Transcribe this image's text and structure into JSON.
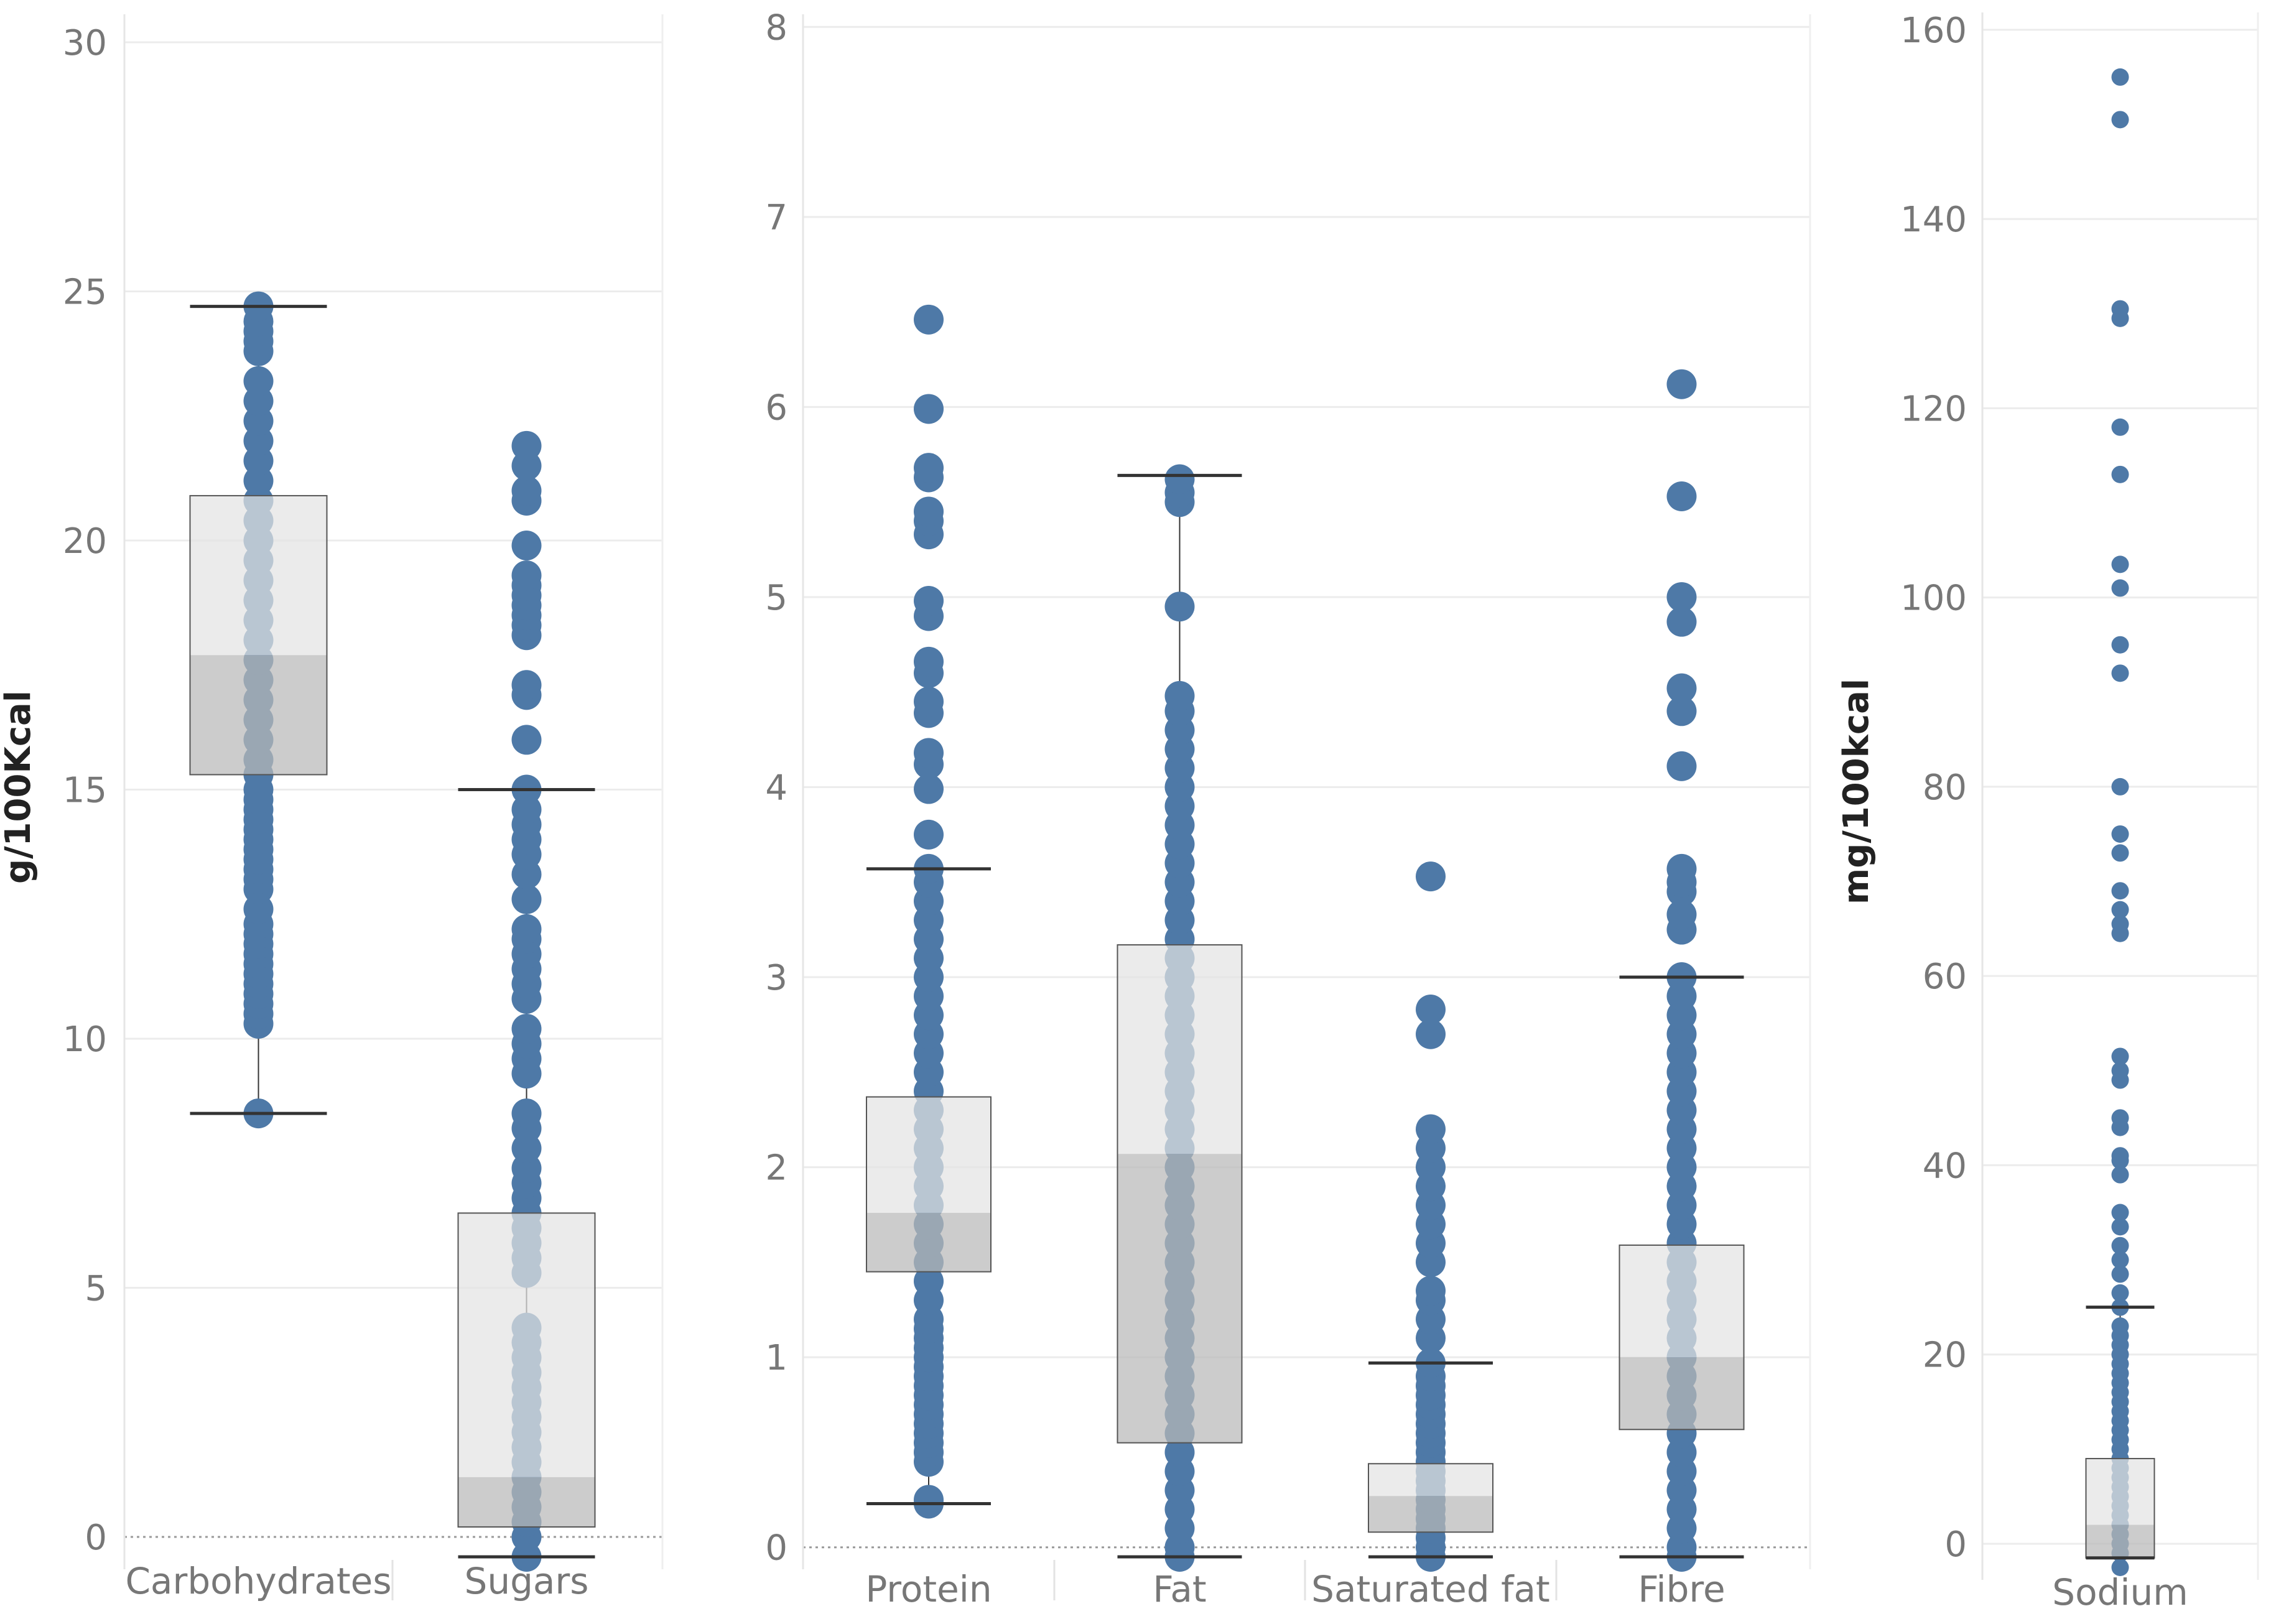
{
  "chart_data": [
    {
      "type": "box",
      "ylabel": "g/100Kcal",
      "ylim": [
        -0.4,
        30.5
      ],
      "yticks": [
        0,
        5,
        10,
        15,
        20,
        25,
        30
      ],
      "ytick_labels": [
        "0",
        "5",
        "10",
        "15",
        "20",
        "25",
        "30"
      ],
      "grid": true,
      "zero_line": "dotted",
      "categories": [
        "Carbohydrates",
        "Sugars"
      ],
      "boxes": [
        {
          "name": "Carbohydrates",
          "whisker_low": 8.5,
          "q1": 15.3,
          "median": 17.7,
          "q3": 20.9,
          "whisker_high": 24.7,
          "points": [
            8.5,
            10.3,
            10.5,
            10.7,
            10.9,
            11.1,
            11.3,
            11.5,
            11.7,
            11.9,
            12.1,
            12.3,
            12.6,
            13.0,
            13.2,
            13.4,
            13.6,
            13.8,
            14.0,
            14.2,
            14.4,
            14.6,
            14.8,
            15.0,
            15.3,
            15.6,
            16.0,
            16.4,
            16.8,
            17.2,
            17.6,
            18.0,
            18.4,
            18.8,
            19.2,
            19.6,
            20.0,
            20.4,
            20.8,
            21.2,
            21.6,
            22.0,
            22.4,
            22.8,
            23.2,
            23.8,
            24.0,
            24.2,
            24.4,
            24.7
          ]
        },
        {
          "name": "Sugars",
          "whisker_low": -0.4,
          "q1": 0.2,
          "median": 1.2,
          "q3": 6.5,
          "whisker_high": 15.0,
          "points": [
            -0.4,
            0.0,
            0.3,
            0.6,
            0.9,
            1.2,
            1.5,
            1.8,
            2.1,
            2.4,
            2.7,
            3.0,
            3.3,
            3.6,
            3.9,
            4.2,
            5.3,
            5.6,
            5.9,
            6.2,
            6.5,
            6.8,
            7.1,
            7.4,
            7.8,
            8.2,
            8.5,
            9.3,
            9.6,
            9.9,
            10.2,
            10.8,
            11.1,
            11.4,
            11.7,
            12.0,
            12.2,
            12.8,
            13.3,
            13.7,
            14.0,
            14.3,
            14.6,
            15.0,
            16.0,
            16.9,
            17.1,
            18.1,
            18.3,
            18.5,
            18.7,
            18.9,
            19.1,
            19.3,
            19.9,
            20.8,
            21.0,
            21.5,
            21.9
          ]
        }
      ]
    },
    {
      "type": "box",
      "ylabel": "",
      "ylim": [
        -0.05,
        8.05
      ],
      "yticks": [
        0,
        1,
        2,
        3,
        4,
        5,
        6,
        7,
        8
      ],
      "ytick_labels": [
        "0",
        "1",
        "2",
        "3",
        "4",
        "5",
        "6",
        "7",
        "8"
      ],
      "grid": true,
      "zero_line": "dotted",
      "categories": [
        "Protein",
        "Fat",
        "Saturated fat",
        "Fibre"
      ],
      "boxes": [
        {
          "name": "Protein",
          "whisker_low": 0.23,
          "q1": 1.45,
          "median": 1.76,
          "q3": 2.37,
          "whisker_high": 3.57,
          "points": [
            0.23,
            0.25,
            0.45,
            0.5,
            0.55,
            0.6,
            0.65,
            0.7,
            0.75,
            0.8,
            0.85,
            0.9,
            0.95,
            1.0,
            1.05,
            1.1,
            1.15,
            1.2,
            1.3,
            1.4,
            1.5,
            1.6,
            1.7,
            1.8,
            1.9,
            2.0,
            2.1,
            2.2,
            2.3,
            2.4,
            2.5,
            2.6,
            2.7,
            2.8,
            2.9,
            3.0,
            3.1,
            3.2,
            3.3,
            3.4,
            3.5,
            3.57,
            3.75,
            3.99,
            4.12,
            4.18,
            4.39,
            4.45,
            4.6,
            4.66,
            4.9,
            4.98,
            5.33,
            5.4,
            5.45,
            5.63,
            5.68,
            5.99,
            6.46
          ]
        },
        {
          "name": "Fat",
          "whisker_low": -0.05,
          "q1": 0.55,
          "median": 2.07,
          "q3": 3.17,
          "whisker_high": 5.64,
          "points": [
            -0.05,
            0.0,
            0.1,
            0.2,
            0.3,
            0.4,
            0.5,
            0.6,
            0.7,
            0.8,
            0.9,
            1.0,
            1.1,
            1.2,
            1.3,
            1.4,
            1.5,
            1.6,
            1.7,
            1.8,
            1.9,
            2.0,
            2.1,
            2.2,
            2.3,
            2.4,
            2.5,
            2.6,
            2.7,
            2.8,
            2.9,
            3.0,
            3.1,
            3.2,
            3.3,
            3.4,
            3.5,
            3.6,
            3.7,
            3.8,
            3.9,
            4.0,
            4.1,
            4.2,
            4.3,
            4.4,
            4.48,
            4.95,
            5.5,
            5.55,
            5.62
          ]
        },
        {
          "name": "Saturated fat",
          "whisker_low": -0.05,
          "q1": 0.08,
          "median": 0.27,
          "q3": 0.44,
          "whisker_high": 0.97,
          "points": [
            -0.05,
            0.0,
            0.05,
            0.1,
            0.15,
            0.2,
            0.25,
            0.3,
            0.35,
            0.4,
            0.45,
            0.5,
            0.55,
            0.6,
            0.65,
            0.7,
            0.75,
            0.8,
            0.85,
            0.9,
            0.97,
            1.1,
            1.2,
            1.3,
            1.35,
            1.5,
            1.6,
            1.7,
            1.8,
            1.9,
            2.0,
            2.1,
            2.2,
            2.7,
            2.83,
            3.53
          ]
        },
        {
          "name": "Fibre",
          "whisker_low": -0.05,
          "q1": 0.62,
          "median": 1.0,
          "q3": 1.59,
          "whisker_high": 3.0,
          "points": [
            -0.05,
            0.0,
            0.1,
            0.2,
            0.3,
            0.4,
            0.5,
            0.6,
            0.7,
            0.8,
            0.9,
            1.0,
            1.1,
            1.2,
            1.3,
            1.4,
            1.5,
            1.6,
            1.7,
            1.8,
            1.9,
            2.0,
            2.1,
            2.2,
            2.3,
            2.4,
            2.5,
            2.6,
            2.7,
            2.8,
            2.9,
            3.0,
            3.25,
            3.33,
            3.45,
            3.5,
            3.57,
            4.11,
            4.4,
            4.52,
            4.87,
            5.0,
            5.53,
            6.12
          ]
        }
      ]
    },
    {
      "type": "box",
      "ylabel": "mg/100kcal",
      "ylim": [
        -2.5,
        161.5
      ],
      "yticks": [
        0,
        20,
        40,
        60,
        80,
        100,
        120,
        140,
        160
      ],
      "ytick_labels": [
        "0",
        "20",
        "40",
        "60",
        "80",
        "100",
        "120",
        "140",
        "160"
      ],
      "grid": true,
      "zero_line": "solid",
      "categories": [
        "Sodium"
      ],
      "boxes": [
        {
          "name": "Sodium",
          "whisker_low": -1.5,
          "q1": -1.5,
          "median": 2.0,
          "q3": 9.0,
          "whisker_high": 25.0,
          "points": [
            -2.5,
            -1.0,
            0.0,
            1.0,
            2.0,
            3.0,
            4.0,
            5.0,
            6.0,
            7.0,
            8.0,
            9.0,
            10.0,
            11.0,
            12.0,
            13.0,
            14.0,
            15.0,
            16.0,
            17.0,
            18.0,
            19.0,
            20.0,
            21.0,
            22.0,
            23.0,
            25.0,
            26.5,
            28.5,
            30.0,
            31.5,
            33.5,
            35.0,
            39.0,
            40.5,
            41.0,
            44.0,
            45.0,
            49.0,
            50.0,
            51.5,
            64.5,
            65.5,
            67.0,
            69.0,
            73.0,
            75.0,
            80.0,
            92.0,
            95.0,
            101.0,
            103.5,
            113.0,
            118.0,
            129.5,
            130.5,
            150.5,
            155.0
          ]
        }
      ]
    }
  ],
  "colors": {
    "point": "#4e79a7",
    "box_upper": "#e3e3e3",
    "box_lower": "#b8b8b8",
    "whisker": "#333333",
    "grid": "#ececec",
    "axis_text": "#777777",
    "ylabel_text": "#222222"
  }
}
